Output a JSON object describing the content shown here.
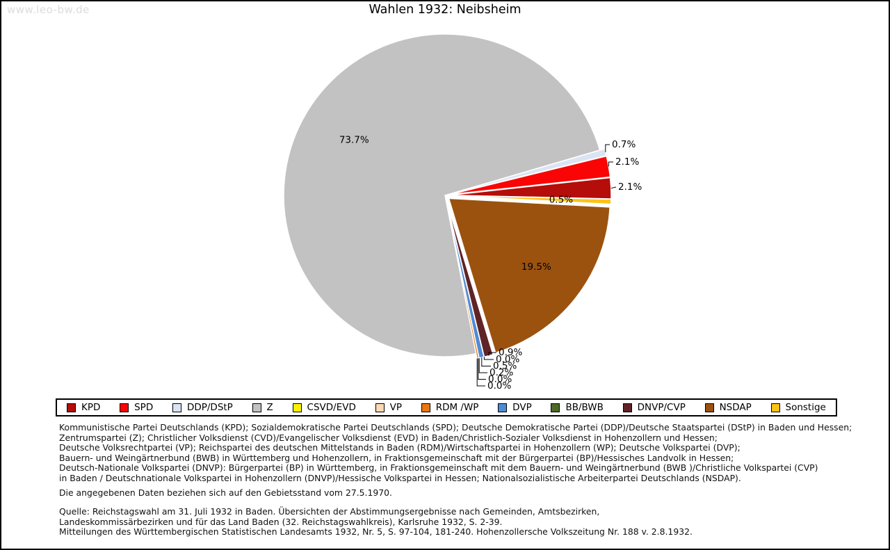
{
  "watermark": "www.leo-bw.de",
  "title": "Wahlen 1932: Neibsheim",
  "chart_data": {
    "type": "pie",
    "title": "Wahlen 1932: Neibsheim",
    "unit": "percent of votes",
    "start_angle_deg": -1.3,
    "direction": "counterclockwise",
    "legend_position": "bottom",
    "series": [
      {
        "name": "KPD",
        "value": 2.1,
        "color": "#b50d09",
        "label": "2.1%"
      },
      {
        "name": "SPD",
        "value": 2.1,
        "color": "#fa0505",
        "label": "2.1%"
      },
      {
        "name": "DDP/DStP",
        "value": 0.7,
        "color": "#dbe4f3",
        "label": "0.7%"
      },
      {
        "name": "Z",
        "value": 73.7,
        "color": "#c2c2c2",
        "label": "73.7%"
      },
      {
        "name": "CSVD/EVD",
        "value": 0.0,
        "color": "#fef200",
        "label": "0.0%"
      },
      {
        "name": "VP",
        "value": 0.0,
        "color": "#fbd9b5",
        "label": "0.0%"
      },
      {
        "name": "RDM /WP",
        "value": 0.2,
        "color": "#e97712",
        "label": "0.2%"
      },
      {
        "name": "DVP",
        "value": 0.5,
        "color": "#4f8bd5",
        "label": "0.5%"
      },
      {
        "name": "BB/BWB",
        "value": 0.0,
        "color": "#4d6a28",
        "label": "0.0%"
      },
      {
        "name": "DNVP/CVP",
        "value": 0.9,
        "color": "#602326",
        "label": "0.9%"
      },
      {
        "name": "NSDAP",
        "value": 19.5,
        "color": "#9b520f",
        "label": "19.5%"
      },
      {
        "name": "Sonstige",
        "value": 0.5,
        "color": "#fdc216",
        "label": "0.5%"
      }
    ]
  },
  "footer": {
    "party_definitions": [
      "Kommunistische Partei Deutschlands (KPD); Sozialdemokratische Partei Deutschlands (SPD); Deutsche Demokratische Partei (DDP)/Deutsche Staatspartei (DStP) in Baden und Hessen;",
      "Zentrumspartei (Z); Christlicher Volksdienst (CVD)/Evangelischer Volksdienst (EVD) in Baden/Christlich-Sozialer Volksdienst in Hohenzollern und Hessen;",
      "Deutsche Volksrechtpartei (VP); Reichspartei des deutschen Mittelstands in Baden (RDM)/Wirtschaftspartei in Hohenzollern (WP); Deutsche Volkspartei (DVP);",
      "Bauern- und Weingärtnerbund (BWB) in Württemberg und Hohenzollern, in Fraktionsgemeinschaft mit der Bürgerpartei (BP)/Hessisches Landvolk in Hessen;",
      "Deutsch-Nationale Volkspartei (DNVP): Bürgerpartei (BP) in Württemberg, in Fraktionsgemeinschaft mit dem Bauern- und Weingärtnerbund (BWB )/Christliche Volkspartei (CVP)",
      "in Baden / Deutschnationale Volkspartei in Hohenzollern (DNVP)/Hessische Volkspartei in Hessen; Nationalsozialistische Arbeiterpartei Deutschlands (NSDAP)."
    ],
    "note": "Die angegebenen Daten beziehen sich auf den Gebietsstand vom 27.5.1970.",
    "source_lines": [
      "Quelle: Reichstagswahl am 31. Juli 1932 in Baden. Übersichten der Abstimmungsergebnisse nach Gemeinden, Amtsbezirken,",
      "Landeskommissärbezirken und für das Land Baden (32. Reichstagswahlkreis), Karlsruhe 1932, S. 2-39.",
      "Mitteilungen des Württembergischen Statistischen Landesamts 1932, Nr. 5, S. 97-104, 181-240. Hohenzollersche Volkszeitung Nr. 188 v. 2.8.1932."
    ]
  }
}
